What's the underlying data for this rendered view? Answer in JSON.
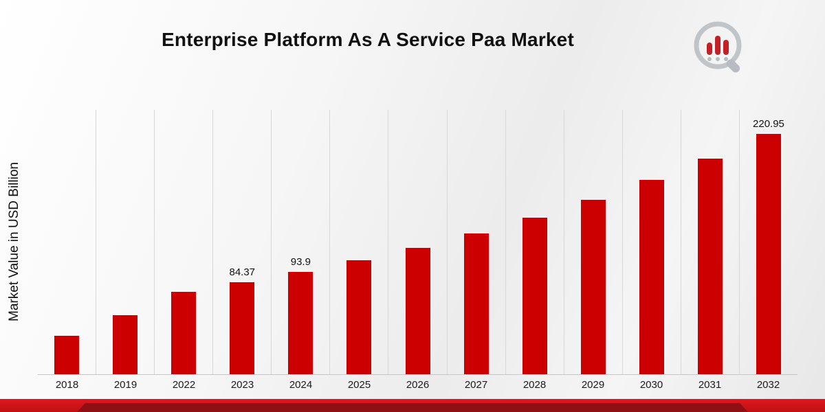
{
  "chart_data": {
    "type": "bar",
    "title": "Enterprise Platform As A Service Paa Market",
    "ylabel": "Market Value in USD Billion",
    "xlabel": "",
    "bar_color": "#cc0000",
    "ylim": [
      0,
      243
    ],
    "grid": "vertical-light",
    "legend": "none",
    "categories": [
      "2018",
      "2019",
      "2022",
      "2023",
      "2024",
      "2025",
      "2026",
      "2027",
      "2028",
      "2029",
      "2030",
      "2031",
      "2032"
    ],
    "values": [
      35.4,
      54.6,
      75.8,
      84.37,
      93.9,
      104.5,
      116.3,
      129.4,
      144.0,
      160.3,
      178.4,
      198.5,
      220.95
    ],
    "value_labels": [
      "",
      "",
      "",
      "84.37",
      "93.9",
      "",
      "",
      "",
      "",
      "",
      "",
      "",
      "220.95"
    ]
  },
  "branding": {
    "logo_icon": "bar-chart-magnifier-logo"
  }
}
